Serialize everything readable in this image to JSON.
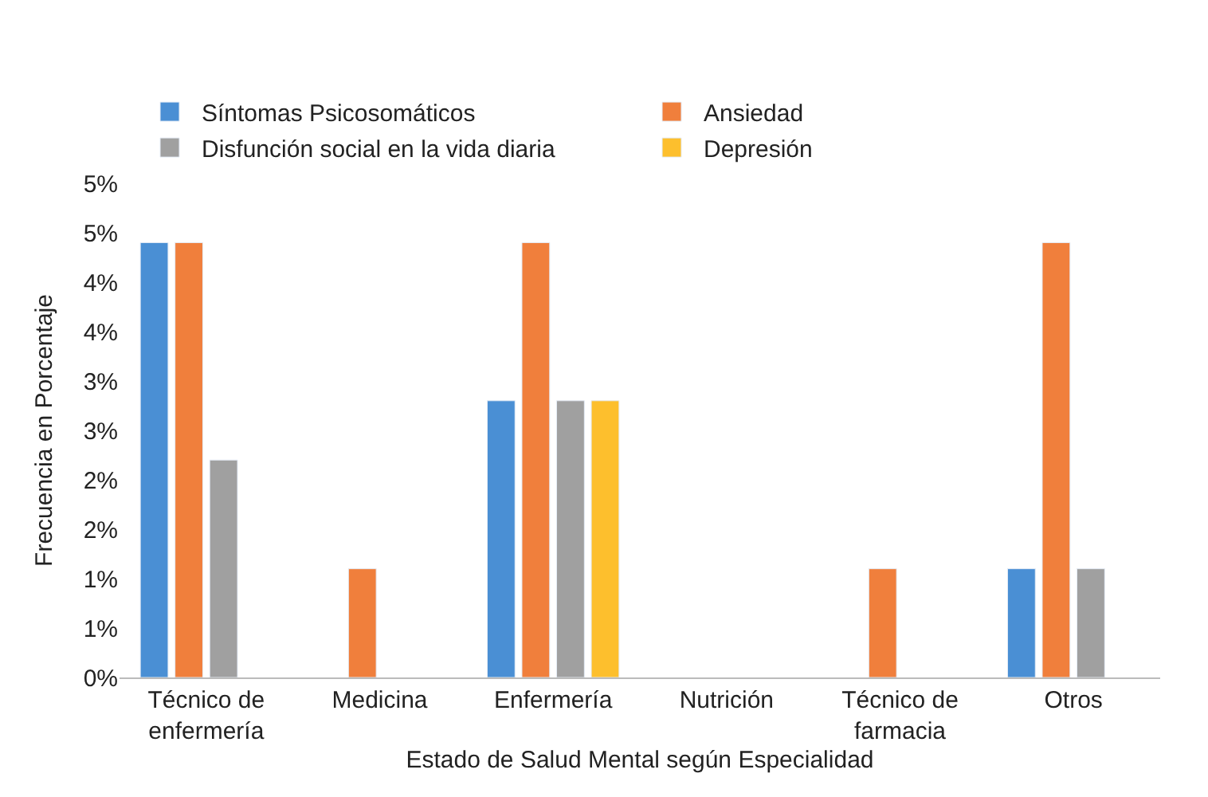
{
  "chart_data": {
    "type": "bar",
    "xlabel": "Estado de Salud Mental según Especialidad",
    "ylabel": "Frecuencia en Porcentaje",
    "categories": [
      "Técnico de enfermería",
      "Medicina",
      "Enfermería",
      "Nutrición",
      "Técnico de farmacia",
      "Otros"
    ],
    "series": [
      {
        "name": "Síntomas Psicosomáticos",
        "color": "#4a8fd4",
        "values": [
          4.4,
          null,
          2.8,
          null,
          null,
          1.1
        ]
      },
      {
        "name": "Ansiedad",
        "color": "#f07f3c",
        "values": [
          4.4,
          1.1,
          4.4,
          null,
          1.1,
          4.4
        ]
      },
      {
        "name": "Disfunción social en la vida diaria",
        "color": "#a0a0a0",
        "values": [
          2.2,
          null,
          2.8,
          null,
          null,
          1.1
        ]
      },
      {
        "name": "Depresión",
        "color": "#fdbf2d",
        "values": [
          null,
          null,
          2.8,
          null,
          null,
          null
        ]
      }
    ],
    "ylim": [
      0,
      5
    ],
    "yticks": [
      {
        "value": 0,
        "label": "0%"
      },
      {
        "value": 0.5,
        "label": "1%"
      },
      {
        "value": 1,
        "label": "1%"
      },
      {
        "value": 1.5,
        "label": "2%"
      },
      {
        "value": 2,
        "label": "2%"
      },
      {
        "value": 2.5,
        "label": "3%"
      },
      {
        "value": 3,
        "label": "3%"
      },
      {
        "value": 3.5,
        "label": "4%"
      },
      {
        "value": 4,
        "label": "4%"
      },
      {
        "value": 4.5,
        "label": "5%"
      },
      {
        "value": 5,
        "label": "5%"
      }
    ],
    "legend": "top"
  }
}
